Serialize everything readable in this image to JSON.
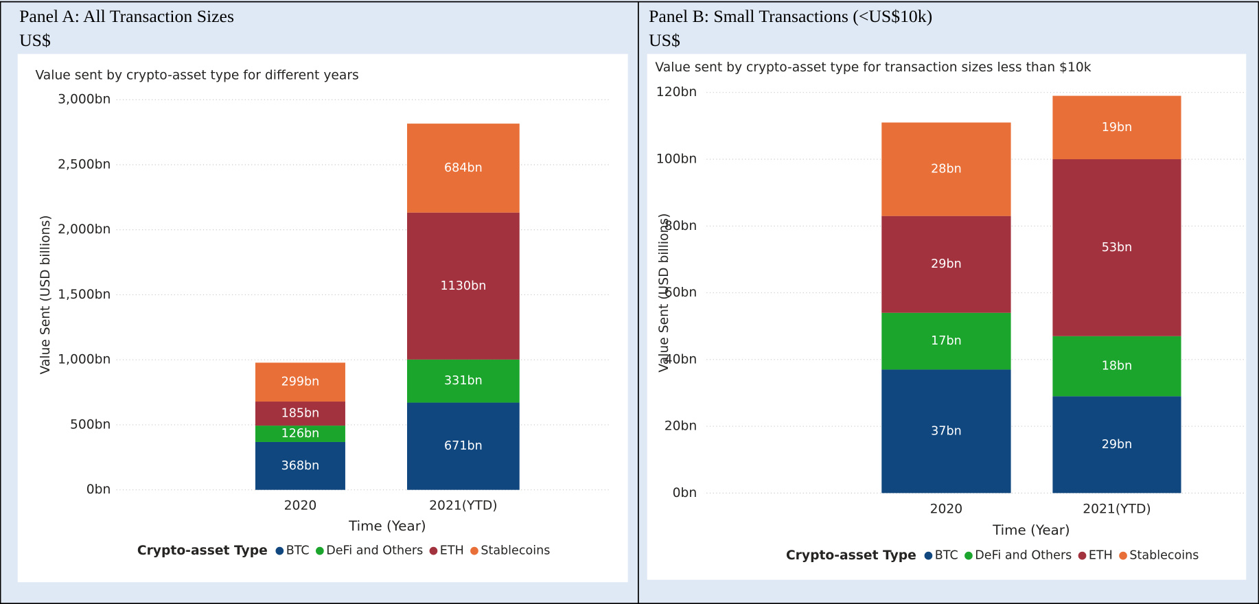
{
  "chart_data": [
    {
      "type": "bar",
      "stacked": true,
      "panel_title": "Panel A: All Transaction Sizes",
      "unit": "US$",
      "title": "Value sent by crypto-asset type for different years",
      "x_label": "Time (Year)",
      "y_label": "Value Sent (USD billions)",
      "legend_title": "Crypto-asset Type",
      "legend": "bottom",
      "grid": true,
      "categories": [
        "2020",
        "2021(YTD)"
      ],
      "ylim": [
        0,
        3000
      ],
      "yticks": [
        {
          "value": 0,
          "label": "0bn"
        },
        {
          "value": 500,
          "label": "500bn"
        },
        {
          "value": 1000,
          "label": "1,000bn"
        },
        {
          "value": 1500,
          "label": "1,500bn"
        },
        {
          "value": 2000,
          "label": "2,000bn"
        },
        {
          "value": 2500,
          "label": "2,500bn"
        },
        {
          "value": 3000,
          "label": "3,000bn"
        }
      ],
      "series": [
        {
          "name": "BTC",
          "color": "#11477f",
          "values": [
            368,
            671
          ],
          "value_labels": [
            "368bn",
            "671bn"
          ]
        },
        {
          "name": "DeFi and Others",
          "color": "#1ba52c",
          "values": [
            126,
            331
          ],
          "value_labels": [
            "126bn",
            "331bn"
          ]
        },
        {
          "name": "ETH",
          "color": "#a2323e",
          "values": [
            185,
            1130
          ],
          "value_labels": [
            "185bn",
            "1130bn"
          ]
        },
        {
          "name": "Stablecoins",
          "color": "#e86f38",
          "values": [
            299,
            684
          ],
          "value_labels": [
            "299bn",
            "684bn"
          ]
        }
      ]
    },
    {
      "type": "bar",
      "stacked": true,
      "panel_title": "Panel B: Small Transactions (<US$10k)",
      "unit": "US$",
      "title": "Value sent by crypto-asset type for transaction sizes less than $10k",
      "x_label": "Time (Year)",
      "y_label": "Value Sent (USD billions)",
      "legend_title": "Crypto-asset Type",
      "legend": "bottom",
      "grid": true,
      "categories": [
        "2020",
        "2021(YTD)"
      ],
      "ylim": [
        0,
        120
      ],
      "yticks": [
        {
          "value": 0,
          "label": "0bn"
        },
        {
          "value": 20,
          "label": "20bn"
        },
        {
          "value": 40,
          "label": "40bn"
        },
        {
          "value": 60,
          "label": "60bn"
        },
        {
          "value": 80,
          "label": "80bn"
        },
        {
          "value": 100,
          "label": "100bn"
        },
        {
          "value": 120,
          "label": "120bn"
        }
      ],
      "series": [
        {
          "name": "BTC",
          "color": "#11477f",
          "values": [
            37,
            29
          ],
          "value_labels": [
            "37bn",
            "29bn"
          ]
        },
        {
          "name": "DeFi and Others",
          "color": "#1ba52c",
          "values": [
            17,
            18
          ],
          "value_labels": [
            "17bn",
            "18bn"
          ]
        },
        {
          "name": "ETH",
          "color": "#a2323e",
          "values": [
            29,
            53
          ],
          "value_labels": [
            "29bn",
            "53bn"
          ]
        },
        {
          "name": "Stablecoins",
          "color": "#e86f38",
          "values": [
            28,
            19
          ],
          "value_labels": [
            "28bn",
            "19bn"
          ]
        }
      ]
    }
  ]
}
